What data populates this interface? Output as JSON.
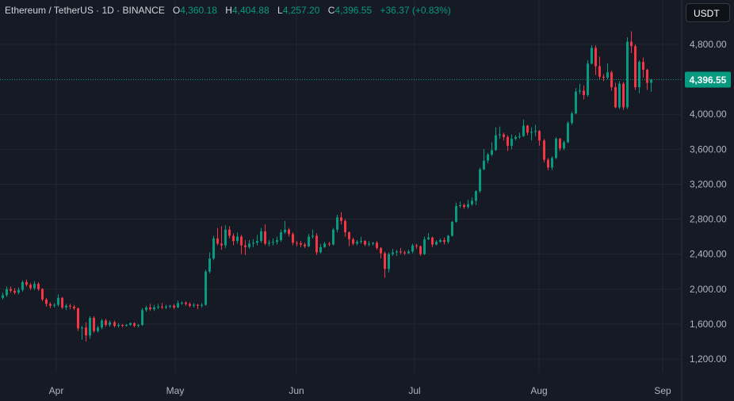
{
  "header": {
    "symbol": "Ethereum / TetherUS · 1D · BINANCE",
    "open_label": "O",
    "open": "4,360.18",
    "high_label": "H",
    "high": "4,404.88",
    "low_label": "L",
    "low": "4,257.20",
    "close_label": "C",
    "close": "4,396.55",
    "change": "+36.37 (+0.83%)"
  },
  "currency_button": "USDT",
  "colors": {
    "background": "#161a25",
    "up": "#089981",
    "down": "#f23645",
    "grid": "#232631"
  },
  "chart_data": {
    "type": "candlestick",
    "title": "Ethereum / TetherUS · 1D · BINANCE",
    "ylim": [
      1100,
      5100
    ],
    "y_ticks": [
      4800,
      4000,
      3600,
      3200,
      2800,
      2400,
      2000,
      1600,
      1200
    ],
    "y_tick_labels": [
      "4,800.00",
      "4,000.00",
      "3,600.00",
      "3,200.00",
      "2,800.00",
      "2,400.00",
      "2,000.00",
      "1,600.00",
      "1,200.00"
    ],
    "x_ticks": [
      "Apr",
      "May",
      "Jun",
      "Jul",
      "Aug",
      "Sep"
    ],
    "current_price": 4396.55,
    "current_price_label": "4,396.55",
    "grid": true,
    "ohlc": [
      [
        1900,
        1960,
        1880,
        1930
      ],
      [
        1930,
        2030,
        1910,
        2000
      ],
      [
        2000,
        2030,
        1960,
        1980
      ],
      [
        1980,
        2010,
        1940,
        1960
      ],
      [
        1960,
        2020,
        1940,
        1990
      ],
      [
        1990,
        2100,
        1970,
        2080
      ],
      [
        2080,
        2110,
        2030,
        2050
      ],
      [
        2050,
        2070,
        1990,
        2010
      ],
      [
        2010,
        2090,
        1990,
        2060
      ],
      [
        2060,
        2080,
        1980,
        2000
      ],
      [
        2000,
        2010,
        1860,
        1880
      ],
      [
        1880,
        1900,
        1800,
        1830
      ],
      [
        1830,
        1850,
        1780,
        1810
      ],
      [
        1810,
        1840,
        1790,
        1820
      ],
      [
        1820,
        1940,
        1800,
        1900
      ],
      [
        1900,
        1910,
        1770,
        1790
      ],
      [
        1790,
        1830,
        1760,
        1810
      ],
      [
        1810,
        1830,
        1770,
        1800
      ],
      [
        1800,
        1820,
        1760,
        1780
      ],
      [
        1780,
        1790,
        1520,
        1550
      ],
      [
        1550,
        1580,
        1420,
        1560
      ],
      [
        1560,
        1620,
        1400,
        1470
      ],
      [
        1470,
        1690,
        1430,
        1670
      ],
      [
        1670,
        1690,
        1500,
        1520
      ],
      [
        1520,
        1580,
        1500,
        1560
      ],
      [
        1560,
        1660,
        1540,
        1640
      ],
      [
        1640,
        1660,
        1570,
        1590
      ],
      [
        1590,
        1640,
        1570,
        1620
      ],
      [
        1620,
        1640,
        1560,
        1580
      ],
      [
        1580,
        1610,
        1560,
        1590
      ],
      [
        1590,
        1600,
        1560,
        1580
      ],
      [
        1580,
        1600,
        1570,
        1590
      ],
      [
        1590,
        1620,
        1580,
        1610
      ],
      [
        1610,
        1620,
        1560,
        1580
      ],
      [
        1580,
        1600,
        1560,
        1590
      ],
      [
        1590,
        1780,
        1580,
        1760
      ],
      [
        1760,
        1810,
        1740,
        1790
      ],
      [
        1790,
        1830,
        1750,
        1770
      ],
      [
        1770,
        1820,
        1750,
        1790
      ],
      [
        1790,
        1830,
        1770,
        1800
      ],
      [
        1800,
        1840,
        1770,
        1790
      ],
      [
        1790,
        1820,
        1770,
        1800
      ],
      [
        1800,
        1820,
        1780,
        1810
      ],
      [
        1810,
        1830,
        1770,
        1790
      ],
      [
        1790,
        1870,
        1780,
        1840
      ],
      [
        1840,
        1860,
        1820,
        1845
      ],
      [
        1845,
        1860,
        1810,
        1830
      ],
      [
        1830,
        1850,
        1790,
        1810
      ],
      [
        1810,
        1840,
        1790,
        1820
      ],
      [
        1820,
        1830,
        1770,
        1810
      ],
      [
        1810,
        1840,
        1790,
        1820
      ],
      [
        1820,
        2220,
        1810,
        2200
      ],
      [
        2200,
        2420,
        2180,
        2350
      ],
      [
        2350,
        2610,
        2330,
        2580
      ],
      [
        2580,
        2700,
        2500,
        2520
      ],
      [
        2520,
        2720,
        2450,
        2500
      ],
      [
        2500,
        2730,
        2470,
        2680
      ],
      [
        2680,
        2720,
        2580,
        2610
      ],
      [
        2610,
        2640,
        2500,
        2550
      ],
      [
        2550,
        2650,
        2520,
        2600
      ],
      [
        2600,
        2620,
        2400,
        2500
      ],
      [
        2500,
        2560,
        2390,
        2480
      ],
      [
        2480,
        2560,
        2460,
        2520
      ],
      [
        2520,
        2570,
        2480,
        2530
      ],
      [
        2530,
        2620,
        2500,
        2550
      ],
      [
        2550,
        2700,
        2530,
        2660
      ],
      [
        2660,
        2740,
        2500,
        2520
      ],
      [
        2520,
        2560,
        2490,
        2530
      ],
      [
        2530,
        2580,
        2500,
        2540
      ],
      [
        2540,
        2600,
        2510,
        2560
      ],
      [
        2560,
        2680,
        2540,
        2650
      ],
      [
        2650,
        2780,
        2630,
        2680
      ],
      [
        2680,
        2700,
        2600,
        2630
      ],
      [
        2630,
        2650,
        2500,
        2530
      ],
      [
        2530,
        2550,
        2490,
        2525
      ],
      [
        2525,
        2550,
        2480,
        2510
      ],
      [
        2510,
        2530,
        2470,
        2490
      ],
      [
        2490,
        2630,
        2480,
        2600
      ],
      [
        2600,
        2680,
        2580,
        2610
      ],
      [
        2610,
        2640,
        2390,
        2420
      ],
      [
        2420,
        2520,
        2410,
        2480
      ],
      [
        2480,
        2540,
        2470,
        2520
      ],
      [
        2520,
        2540,
        2490,
        2510
      ],
      [
        2510,
        2700,
        2500,
        2680
      ],
      [
        2680,
        2850,
        2650,
        2820
      ],
      [
        2820,
        2880,
        2740,
        2780
      ],
      [
        2780,
        2800,
        2600,
        2650
      ],
      [
        2650,
        2660,
        2490,
        2570
      ],
      [
        2570,
        2590,
        2500,
        2520
      ],
      [
        2520,
        2560,
        2500,
        2540
      ],
      [
        2540,
        2600,
        2520,
        2550
      ],
      [
        2550,
        2560,
        2490,
        2510
      ],
      [
        2510,
        2550,
        2490,
        2520
      ],
      [
        2520,
        2540,
        2500,
        2530
      ],
      [
        2530,
        2550,
        2450,
        2470
      ],
      [
        2470,
        2480,
        2350,
        2410
      ],
      [
        2410,
        2430,
        2130,
        2230
      ],
      [
        2230,
        2420,
        2190,
        2400
      ],
      [
        2400,
        2460,
        2380,
        2420
      ],
      [
        2420,
        2450,
        2380,
        2430
      ],
      [
        2430,
        2470,
        2400,
        2420
      ],
      [
        2420,
        2440,
        2390,
        2410
      ],
      [
        2410,
        2450,
        2400,
        2430
      ],
      [
        2430,
        2520,
        2410,
        2500
      ],
      [
        2500,
        2520,
        2460,
        2490
      ],
      [
        2490,
        2500,
        2380,
        2400
      ],
      [
        2400,
        2600,
        2390,
        2570
      ],
      [
        2570,
        2640,
        2560,
        2590
      ],
      [
        2590,
        2600,
        2480,
        2510
      ],
      [
        2510,
        2560,
        2500,
        2540
      ],
      [
        2540,
        2580,
        2530,
        2560
      ],
      [
        2560,
        2590,
        2510,
        2540
      ],
      [
        2540,
        2620,
        2520,
        2610
      ],
      [
        2610,
        2780,
        2600,
        2770
      ],
      [
        2770,
        2990,
        2760,
        2950
      ],
      [
        2950,
        3000,
        2930,
        2960
      ],
      [
        2960,
        2980,
        2920,
        2940
      ],
      [
        2940,
        3020,
        2920,
        2970
      ],
      [
        2970,
        3050,
        2950,
        3010
      ],
      [
        3010,
        3130,
        2960,
        3120
      ],
      [
        3120,
        3390,
        3100,
        3370
      ],
      [
        3370,
        3600,
        3360,
        3470
      ],
      [
        3470,
        3560,
        3440,
        3540
      ],
      [
        3540,
        3680,
        3520,
        3590
      ],
      [
        3590,
        3850,
        3580,
        3760
      ],
      [
        3760,
        3860,
        3720,
        3770
      ],
      [
        3770,
        3790,
        3700,
        3740
      ],
      [
        3740,
        3760,
        3580,
        3640
      ],
      [
        3640,
        3770,
        3600,
        3720
      ],
      [
        3720,
        3760,
        3700,
        3740
      ],
      [
        3740,
        3790,
        3720,
        3750
      ],
      [
        3750,
        3940,
        3740,
        3870
      ],
      [
        3870,
        3880,
        3760,
        3790
      ],
      [
        3790,
        3850,
        3700,
        3800
      ],
      [
        3800,
        3880,
        3750,
        3810
      ],
      [
        3810,
        3820,
        3640,
        3700
      ],
      [
        3700,
        3720,
        3450,
        3480
      ],
      [
        3480,
        3500,
        3360,
        3390
      ],
      [
        3390,
        3520,
        3360,
        3500
      ],
      [
        3500,
        3740,
        3490,
        3720
      ],
      [
        3720,
        3730,
        3580,
        3610
      ],
      [
        3610,
        3700,
        3590,
        3680
      ],
      [
        3680,
        3920,
        3670,
        3900
      ],
      [
        3900,
        4030,
        3880,
        4010
      ],
      [
        4010,
        4300,
        4000,
        4260
      ],
      [
        4260,
        4350,
        4230,
        4270
      ],
      [
        4270,
        4330,
        4170,
        4220
      ],
      [
        4220,
        4620,
        4200,
        4580
      ],
      [
        4580,
        4790,
        4570,
        4760
      ],
      [
        4760,
        4790,
        4450,
        4550
      ],
      [
        4550,
        4660,
        4400,
        4430
      ],
      [
        4430,
        4460,
        4380,
        4420
      ],
      [
        4420,
        4580,
        4400,
        4480
      ],
      [
        4480,
        4500,
        4270,
        4310
      ],
      [
        4310,
        4360,
        4070,
        4080
      ],
      [
        4080,
        4380,
        4060,
        4350
      ],
      [
        4350,
        4370,
        4050,
        4080
      ],
      [
        4080,
        4880,
        4060,
        4830
      ],
      [
        4830,
        4950,
        4700,
        4780
      ],
      [
        4780,
        4800,
        4280,
        4310
      ],
      [
        4310,
        4620,
        4240,
        4600
      ],
      [
        4600,
        4650,
        4420,
        4510
      ],
      [
        4510,
        4520,
        4280,
        4360
      ],
      [
        4360.18,
        4404.88,
        4257.2,
        4396.55
      ]
    ]
  }
}
